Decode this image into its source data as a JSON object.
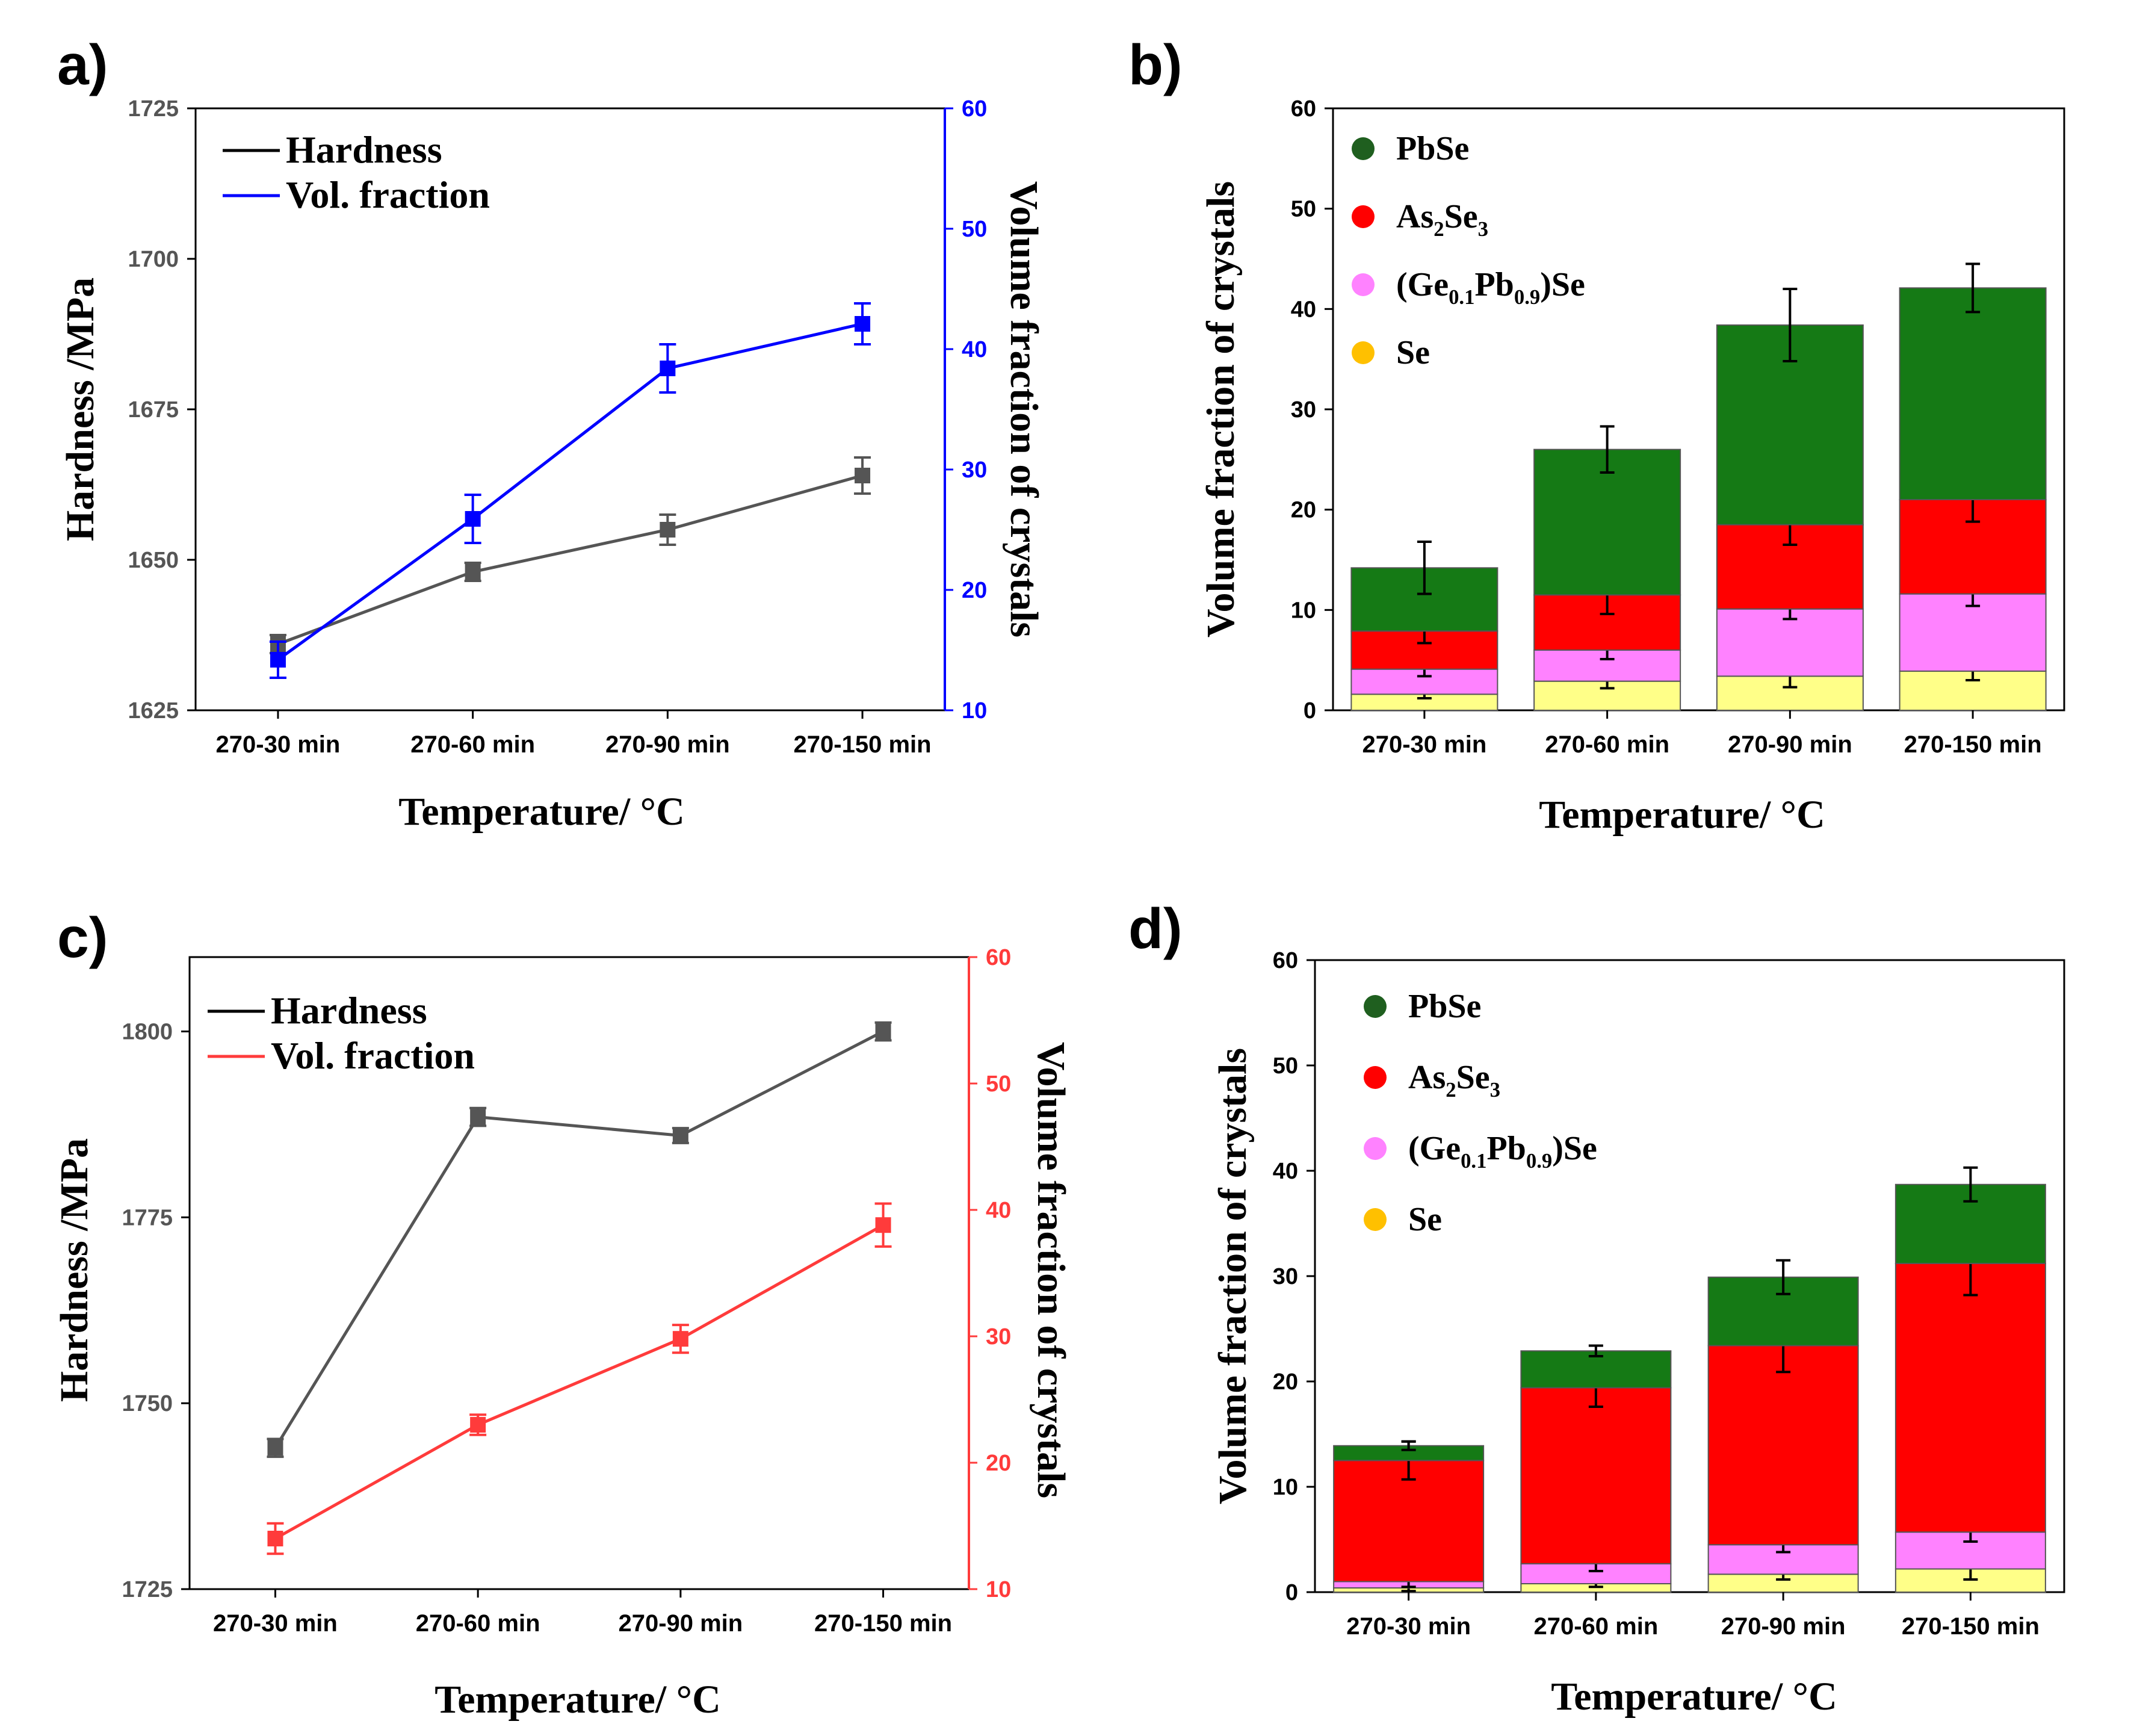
{
  "figure": {
    "colors": {
      "hardness": "#555555",
      "hardness_legend": "#000000",
      "vol_a": "#0000ff",
      "vol_c": "#ff3b3b",
      "PbSe": "#157a15",
      "As2Se3": "#ff0000",
      "GePbSe": "#ff82ff",
      "Se": "#ffff88",
      "Se_marker": "#ffc000",
      "PbSe_marker": "#1f5f1f"
    }
  },
  "chart_data": [
    {
      "panel": "a)",
      "type": "line",
      "categories": [
        "270-30 min",
        "270-60 min",
        "270-90 min",
        "270-150 min"
      ],
      "xlabel": "Temperature/ °C",
      "ylabel": "Hardness /MPa",
      "y2label": "Volume fraction of crystals",
      "ylim": [
        1625,
        1725
      ],
      "yticks": [
        1625,
        1650,
        1675,
        1700,
        1725
      ],
      "y2lim": [
        10,
        60
      ],
      "y2ticks": [
        10,
        20,
        30,
        40,
        50,
        60
      ],
      "legend": [
        "Hardness",
        "Vol. fraction"
      ],
      "series": [
        {
          "name": "Hardness",
          "axis": "left",
          "values": [
            1636,
            1648,
            1655,
            1664
          ],
          "errors": [
            1.5,
            1.5,
            2.5,
            3
          ]
        },
        {
          "name": "Vol. fraction",
          "axis": "right",
          "values": [
            14.2,
            25.9,
            38.4,
            42.1
          ],
          "errors": [
            1.5,
            2,
            2,
            1.7
          ]
        }
      ]
    },
    {
      "panel": "b)",
      "type": "bar",
      "stacked": true,
      "categories": [
        "270-30 min",
        "270-60 min",
        "270-90 min",
        "270-150 min"
      ],
      "xlabel": "Temperature/ °C",
      "ylabel": "Volume fraction of crystals",
      "ylim": [
        0,
        60
      ],
      "yticks": [
        0,
        10,
        20,
        30,
        40,
        50,
        60
      ],
      "legend": [
        "PbSe",
        "As2Se3",
        "(Ge0.1Pb0.9)Se",
        "Se"
      ],
      "series": [
        {
          "name": "Se",
          "values": [
            1.6,
            2.9,
            3.4,
            3.9
          ],
          "errors": [
            0.4,
            0.7,
            1.1,
            0.9
          ]
        },
        {
          "name": "(Ge0.1Pb0.9)Se",
          "values": [
            2.5,
            3.1,
            6.7,
            7.7
          ],
          "errors": [
            0.7,
            0.9,
            1.0,
            1.2
          ]
        },
        {
          "name": "As2Se3",
          "values": [
            3.8,
            5.5,
            8.4,
            9.4
          ],
          "errors": [
            1.2,
            1.9,
            2.0,
            2.2
          ]
        },
        {
          "name": "PbSe",
          "values": [
            6.3,
            14.5,
            19.9,
            21.1
          ],
          "errors": [
            2.6,
            2.3,
            3.6,
            2.4
          ]
        }
      ]
    },
    {
      "panel": "c)",
      "type": "line",
      "categories": [
        "270-30 min",
        "270-60 min",
        "270-90 min",
        "270-150 min"
      ],
      "xlabel": "Temperature/ °C",
      "ylabel": "Hardness /MPa",
      "y2label": "Volume fraction of crystals",
      "ylim": [
        1725,
        1810
      ],
      "yticks": [
        1725,
        1750,
        1775,
        1800
      ],
      "y2lim": [
        10,
        60
      ],
      "y2ticks": [
        10,
        20,
        30,
        40,
        50,
        60
      ],
      "legend": [
        "Hardness",
        "Vol. fraction"
      ],
      "series": [
        {
          "name": "Hardness",
          "axis": "left",
          "values": [
            1744,
            1788.5,
            1786,
            1800
          ],
          "errors": [
            1.2,
            1.2,
            1.0,
            1.2
          ]
        },
        {
          "name": "Vol. fraction",
          "axis": "right",
          "values": [
            14.0,
            23.0,
            29.8,
            38.8
          ],
          "errors": [
            1.2,
            0.8,
            1.1,
            1.7
          ]
        }
      ]
    },
    {
      "panel": "d)",
      "type": "bar",
      "stacked": true,
      "categories": [
        "270-30 min",
        "270-60 min",
        "270-90 min",
        "270-150 min"
      ],
      "xlabel": "Temperature/ °C",
      "ylabel": "Volume fraction of crystals",
      "ylim": [
        0,
        60
      ],
      "yticks": [
        0,
        10,
        20,
        30,
        40,
        50,
        60
      ],
      "legend": [
        "PbSe",
        "As2Se3",
        "(Ge0.1Pb0.9)Se",
        "Se"
      ],
      "series": [
        {
          "name": "Se",
          "values": [
            0.4,
            0.8,
            1.7,
            2.2
          ],
          "errors": [
            0.3,
            0.3,
            0.5,
            1.0
          ]
        },
        {
          "name": "(Ge0.1Pb0.9)Se",
          "values": [
            0.6,
            1.9,
            2.8,
            3.5
          ],
          "errors": [
            0.5,
            0.7,
            0.7,
            0.9
          ]
        },
        {
          "name": "As2Se3",
          "values": [
            11.5,
            16.7,
            18.9,
            25.5
          ],
          "errors": [
            1.8,
            1.8,
            2.5,
            3.0
          ]
        },
        {
          "name": "PbSe",
          "values": [
            1.4,
            3.5,
            6.5,
            7.5
          ],
          "errors": [
            0.4,
            0.5,
            1.6,
            1.6
          ]
        }
      ]
    }
  ]
}
